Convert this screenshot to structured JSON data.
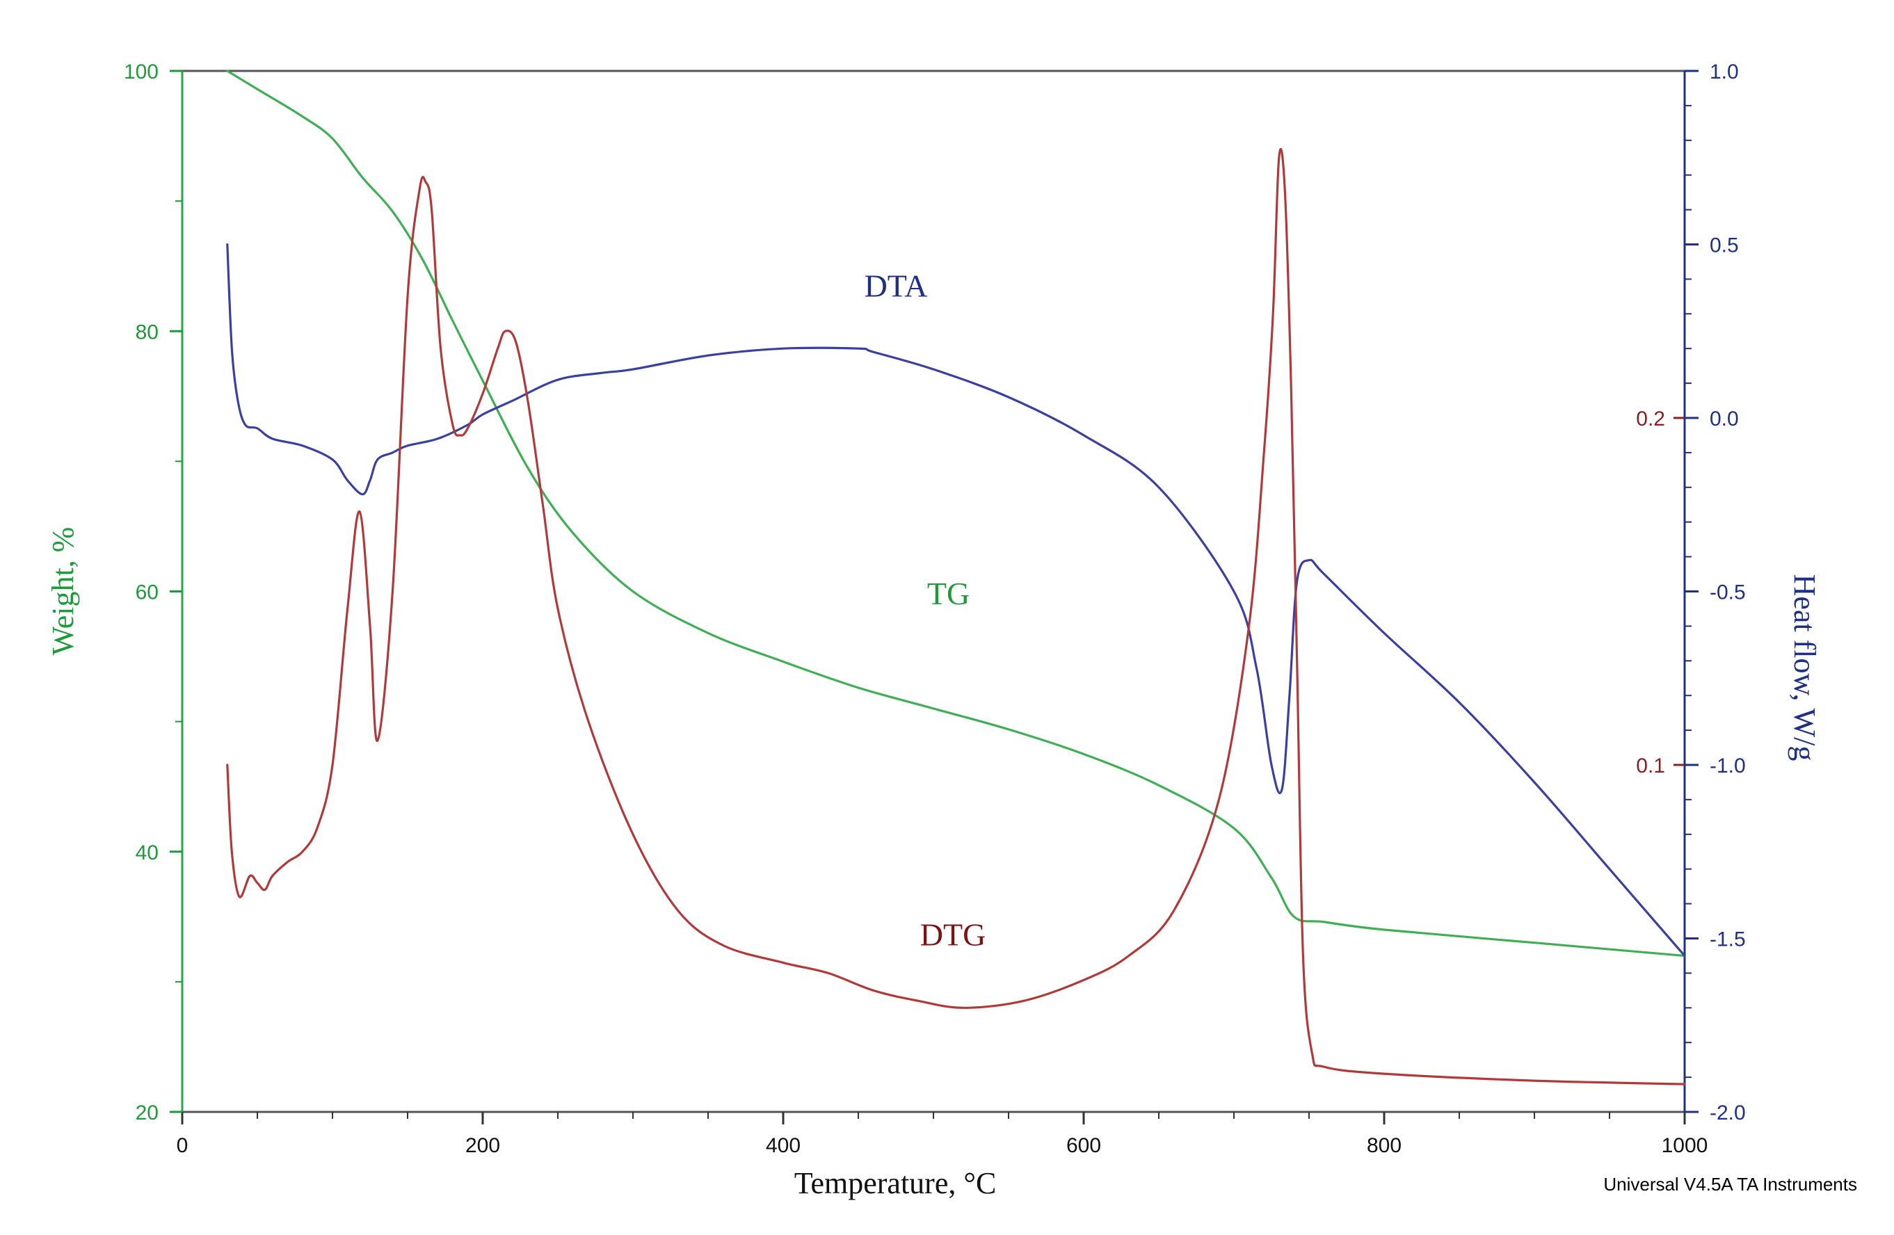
{
  "chart_data": {
    "type": "line",
    "xlabel": "Temperature, °C",
    "x_ticks": [
      "0",
      "200",
      "400",
      "600",
      "800",
      "1000"
    ],
    "xlim": [
      0,
      1000
    ],
    "y_left": {
      "label": "Weight, %",
      "color": "#1f9a3a",
      "ylim": [
        20,
        100
      ],
      "ticks": [
        "20",
        "40",
        "60",
        "80",
        "100"
      ]
    },
    "y_right_heat": {
      "label": "Heat flow, W/g",
      "color": "#1f2f86",
      "ylim": [
        -2.0,
        1.0
      ],
      "ticks": [
        "-2.0",
        "-1.5",
        "-1.0",
        "-0.5",
        "0.0",
        "0.5",
        "1.0"
      ]
    },
    "y_right_dtg": {
      "color": "#8b1f1f",
      "ticks": [
        "0.1",
        "0.2"
      ],
      "tick_heat_equivalent": [
        -1.0,
        0.0
      ]
    },
    "footer": "Universal V4.5A TA Instruments",
    "series": [
      {
        "name": "TG",
        "axis": "left",
        "color": "#3fae55",
        "label_text": "TG",
        "label_at": [
          510,
          59
        ],
        "x": [
          30,
          50,
          80,
          100,
          120,
          140,
          160,
          180,
          200,
          230,
          260,
          300,
          350,
          400,
          450,
          500,
          550,
          600,
          650,
          700,
          725,
          740,
          760,
          800,
          900,
          1000
        ],
        "y": [
          100,
          98.6,
          96.5,
          94.8,
          91.8,
          89.2,
          85.5,
          80.8,
          76.2,
          69.5,
          64.5,
          60.0,
          56.8,
          54.6,
          52.6,
          51.0,
          49.4,
          47.5,
          45.1,
          41.8,
          38.0,
          35.0,
          34.6,
          34.0,
          33.0,
          32.0
        ]
      },
      {
        "name": "DTA",
        "axis": "right_heat",
        "color": "#3a3fa0",
        "label_text": "DTA",
        "label_at": [
          475,
          0.35
        ],
        "x": [
          30,
          33,
          37,
          42,
          50,
          60,
          80,
          100,
          110,
          120,
          125,
          130,
          140,
          150,
          170,
          190,
          200,
          220,
          250,
          280,
          300,
          350,
          400,
          450,
          460,
          500,
          550,
          600,
          650,
          700,
          715,
          725,
          732,
          737,
          742,
          750,
          760,
          800,
          850,
          900,
          950,
          1000
        ],
        "y": [
          0.5,
          0.2,
          0.05,
          -0.02,
          -0.03,
          -0.06,
          -0.08,
          -0.12,
          -0.18,
          -0.22,
          -0.18,
          -0.12,
          -0.1,
          -0.08,
          -0.06,
          -0.02,
          0.01,
          0.05,
          0.11,
          0.13,
          0.14,
          0.18,
          0.2,
          0.2,
          0.19,
          0.14,
          0.06,
          -0.05,
          -0.2,
          -0.5,
          -0.72,
          -1.0,
          -1.07,
          -0.8,
          -0.47,
          -0.41,
          -0.45,
          -0.62,
          -0.82,
          -1.05,
          -1.3,
          -1.55
        ]
      },
      {
        "name": "DTG",
        "axis": "right_heat",
        "color": "#b03a3a",
        "label_text": "DTG",
        "label_at": [
          513,
          -1.52
        ],
        "x": [
          30,
          33,
          38,
          45,
          50,
          55,
          60,
          70,
          80,
          90,
          100,
          110,
          118,
          125,
          130,
          140,
          150,
          158,
          162,
          166,
          172,
          180,
          185,
          190,
          200,
          210,
          215,
          222,
          230,
          240,
          250,
          270,
          300,
          330,
          360,
          400,
          430,
          460,
          490,
          520,
          560,
          600,
          630,
          660,
          690,
          710,
          720,
          726,
          730,
          734,
          738,
          742,
          746,
          752,
          760,
          800,
          900,
          1000
        ],
        "y": [
          -1.0,
          -1.25,
          -1.38,
          -1.32,
          -1.34,
          -1.36,
          -1.32,
          -1.28,
          -1.25,
          -1.18,
          -1.0,
          -0.55,
          -0.27,
          -0.6,
          -0.93,
          -0.5,
          0.35,
          0.66,
          0.68,
          0.6,
          0.2,
          -0.02,
          -0.05,
          -0.03,
          0.07,
          0.2,
          0.25,
          0.22,
          0.05,
          -0.25,
          -0.55,
          -0.87,
          -1.2,
          -1.42,
          -1.52,
          -1.57,
          -1.6,
          -1.65,
          -1.68,
          -1.7,
          -1.68,
          -1.62,
          -1.55,
          -1.42,
          -1.1,
          -0.6,
          -0.1,
          0.3,
          0.75,
          0.65,
          0.1,
          -0.7,
          -1.55,
          -1.83,
          -1.87,
          -1.89,
          -1.91,
          -1.92
        ]
      }
    ]
  }
}
